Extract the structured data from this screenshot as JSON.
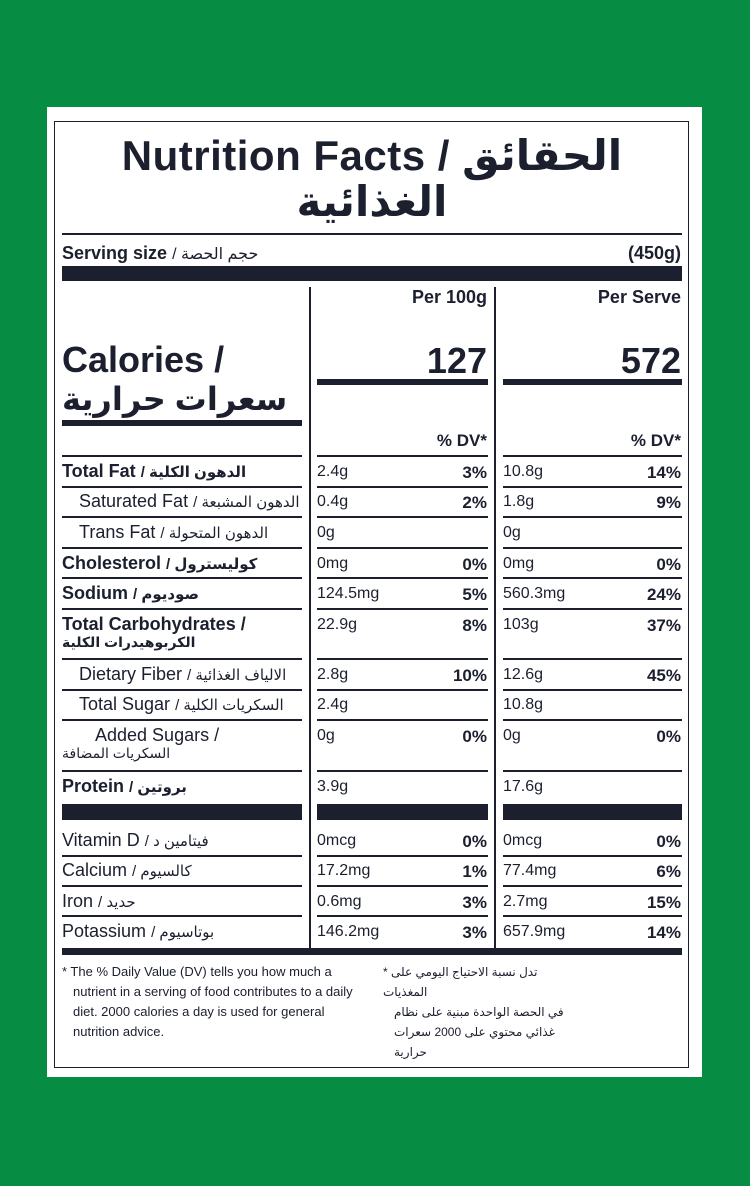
{
  "title": "Nutrition Facts / الحقائق",
  "title_line2": "الغذائية",
  "serving": {
    "label": "Serving size",
    "label_ar": "/ حجم الحصة",
    "value": "(450g)"
  },
  "columns": {
    "per100": "Per 100g",
    "perServe": "Per Serve"
  },
  "calories": {
    "label": "Calories /",
    "label_ar": "سعرات حرارية",
    "per100": "127",
    "perServe": "572"
  },
  "dv_header": "% DV*",
  "rows": [
    {
      "label": "Total Fat",
      "label_ar": "/ الدهون الكلية",
      "v1": "2.4g",
      "p1": "3%",
      "v2": "10.8g",
      "p2": "14%"
    },
    {
      "label": "Saturated Fat",
      "label_ar": "/ الدهون المشبعة",
      "v1": "0.4g",
      "p1": "2%",
      "v2": "1.8g",
      "p2": "9%"
    },
    {
      "label": "Trans Fat",
      "label_ar": "/ الدهون المتحولة",
      "v1": "0g",
      "p1": "",
      "v2": "0g",
      "p2": ""
    },
    {
      "label": "Cholesterol",
      "label_ar": "/ كوليسترول",
      "v1": "0mg",
      "p1": "0%",
      "v2": "0mg",
      "p2": "0%"
    },
    {
      "label": "Sodium",
      "label_ar": "/ صوديوم",
      "v1": "124.5mg",
      "p1": "5%",
      "v2": "560.3mg",
      "p2": "24%"
    },
    {
      "label": "Total Carbohydrates /",
      "label_ar": "الكربوهيدرات الكلية",
      "v1": "22.9g",
      "p1": "8%",
      "v2": "103g",
      "p2": "37%"
    },
    {
      "label": "Dietary Fiber",
      "label_ar": "/ الالياف الغذائية",
      "v1": "2.8g",
      "p1": "10%",
      "v2": "12.6g",
      "p2": "45%"
    },
    {
      "label": "Total Sugar",
      "label_ar": "/ السكريات الكلية",
      "v1": "2.4g",
      "p1": "",
      "v2": "10.8g",
      "p2": ""
    },
    {
      "label": "Added Sugars /",
      "label_ar": "السكريات المضافة",
      "v1": "0g",
      "p1": "0%",
      "v2": "0g",
      "p2": "0%"
    },
    {
      "label": "Protein",
      "label_ar": "/ بروتين",
      "v1": "3.9g",
      "p1": "",
      "v2": "17.6g",
      "p2": ""
    },
    {
      "label": "Vitamin D",
      "label_ar": "/ فيتامين د",
      "v1": "0mcg",
      "p1": "0%",
      "v2": "0mcg",
      "p2": "0%"
    },
    {
      "label": "Calcium",
      "label_ar": "/ كالسيوم",
      "v1": "17.2mg",
      "p1": "1%",
      "v2": "77.4mg",
      "p2": "6%"
    },
    {
      "label": "Iron",
      "label_ar": "/ حديد",
      "v1": "0.6mg",
      "p1": "3%",
      "v2": "2.7mg",
      "p2": "15%"
    },
    {
      "label": "Potassium",
      "label_ar": "/ بوتاسيوم",
      "v1": "146.2mg",
      "p1": "3%",
      "v2": "657.9mg",
      "p2": "14%"
    }
  ],
  "footnote": {
    "en_1": "*  The % Daily Value (DV) tells you how much a",
    "en_2": "nutrient in a serving of food contributes to a daily",
    "en_3": "diet. 2000 calories a day is used for general",
    "en_4": "nutrition advice.",
    "ar_1": "*  تدل نسبة الاحتياج اليومي على المغذيات",
    "ar_2": "في الحصة الواحدة مبنية على نظام",
    "ar_3": "غذائي محتوي على 2000 سعرات",
    "ar_4": "حرارية"
  },
  "colors": {
    "background": "#078c43",
    "ink": "#1b1f2e",
    "card": "#ffffff"
  }
}
